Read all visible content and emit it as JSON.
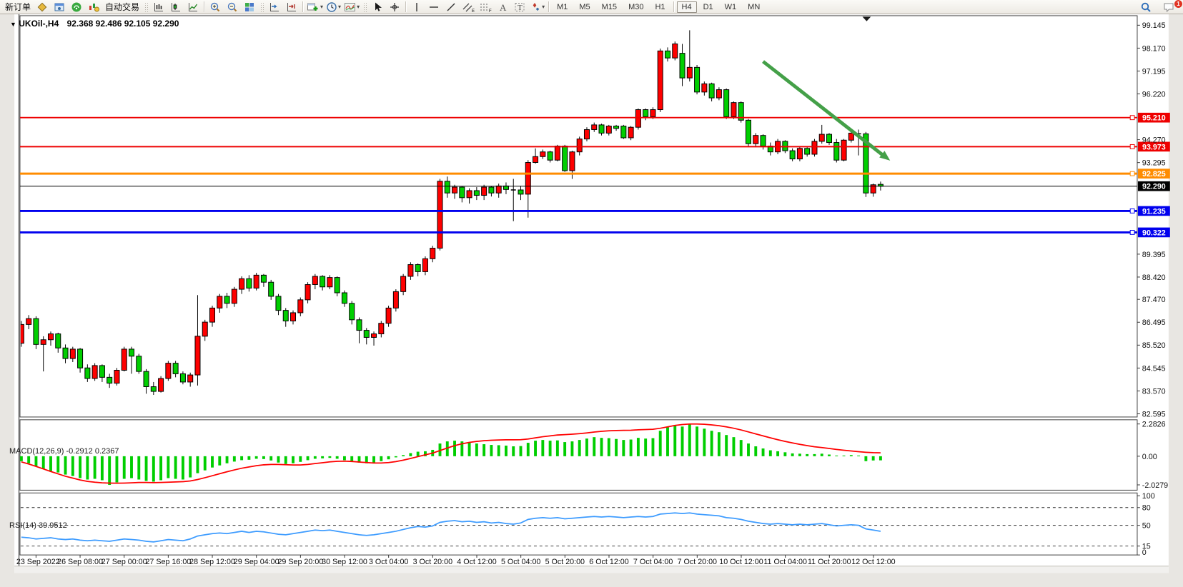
{
  "toolbar": {
    "new_order_label": "新订单",
    "autotrade_label": "自动交易",
    "timeframes": [
      "M1",
      "M5",
      "M15",
      "M30",
      "H1",
      "H4",
      "D1",
      "W1",
      "MN"
    ],
    "active_timeframe": "H4",
    "notification_badge": "1",
    "dropdown_caret": "▾"
  },
  "chart": {
    "caret": "▼",
    "title": "UKOil-,H4",
    "ohlc": "92.368 92.486 92.105 92.290"
  },
  "chart_data": [
    {
      "type": "candlestick",
      "symbol": "UKOil-",
      "timeframe": "H4",
      "title": "UKOil-,H4",
      "ohlc_display": {
        "open": "92.368",
        "high": "92.486",
        "low": "92.105",
        "close": "92.290"
      },
      "y_ticks": [
        "99.145",
        "98.170",
        "97.195",
        "96.220",
        "94.270",
        "93.295",
        "89.395",
        "88.420",
        "87.470",
        "86.495",
        "85.520",
        "84.545",
        "83.570",
        "82.595"
      ],
      "hlines": [
        {
          "price": 95.21,
          "label": "95.210",
          "color": "#EE0000",
          "width": 2
        },
        {
          "price": 93.973,
          "label": "93.973",
          "color": "#EE0000",
          "width": 2
        },
        {
          "price": 92.825,
          "label": "92.825",
          "color": "#FF8C00",
          "width": 3
        },
        {
          "price": 92.29,
          "label": "92.290",
          "color": "#000000",
          "width": 1
        },
        {
          "price": 91.235,
          "label": "91.235",
          "color": "#0000EE",
          "width": 3
        },
        {
          "price": 90.322,
          "label": "90.322",
          "color": "#0000EE",
          "width": 3
        }
      ],
      "x_labels": [
        "23 Sep 2022",
        "26 Sep 08:00",
        "27 Sep 00:00",
        "27 Sep 16:00",
        "28 Sep 12:00",
        "29 Sep 04:00",
        "29 Sep 20:00",
        "30 Sep 12:00",
        "3 Oct 04:00",
        "3 Oct 20:00",
        "4 Oct 12:00",
        "5 Oct 04:00",
        "5 Oct 20:00",
        "6 Oct 12:00",
        "7 Oct 04:00",
        "7 Oct 20:00",
        "10 Oct 12:00",
        "11 Oct 04:00",
        "11 Oct 20:00",
        "12 Oct 12:00"
      ],
      "candles": [
        [
          85.6,
          86.55,
          85.45,
          86.4
        ],
        [
          86.4,
          86.8,
          86.2,
          86.65
        ],
        [
          86.65,
          86.75,
          85.35,
          85.55
        ],
        [
          85.55,
          85.9,
          84.4,
          85.75
        ],
        [
          85.75,
          86.1,
          85.5,
          86.0
        ],
        [
          86.0,
          86.05,
          85.2,
          85.4
        ],
        [
          85.4,
          85.55,
          84.75,
          84.95
        ],
        [
          84.95,
          85.45,
          84.8,
          85.35
        ],
        [
          85.35,
          85.4,
          84.35,
          84.55
        ],
        [
          84.55,
          84.7,
          83.95,
          84.1
        ],
        [
          84.1,
          84.75,
          84.0,
          84.65
        ],
        [
          84.65,
          84.7,
          83.95,
          84.15
        ],
        [
          84.15,
          84.3,
          83.7,
          83.9
        ],
        [
          83.9,
          84.55,
          83.8,
          84.45
        ],
        [
          84.45,
          85.45,
          84.4,
          85.35
        ],
        [
          85.35,
          85.45,
          84.3,
          85.05
        ],
        [
          85.05,
          85.15,
          84.3,
          84.4
        ],
        [
          84.4,
          84.5,
          83.45,
          83.75
        ],
        [
          83.75,
          83.95,
          83.4,
          83.55
        ],
        [
          83.55,
          84.2,
          83.5,
          84.1
        ],
        [
          84.1,
          84.85,
          84.0,
          84.75
        ],
        [
          84.75,
          84.85,
          84.15,
          84.3
        ],
        [
          84.3,
          84.4,
          83.85,
          83.95
        ],
        [
          83.95,
          84.35,
          83.75,
          84.25
        ],
        [
          84.25,
          87.65,
          83.8,
          85.9
        ],
        [
          85.9,
          86.6,
          85.7,
          86.5
        ],
        [
          86.5,
          87.2,
          86.3,
          87.1
        ],
        [
          87.1,
          87.7,
          86.9,
          87.6
        ],
        [
          87.6,
          87.75,
          87.1,
          87.3
        ],
        [
          87.3,
          88.0,
          87.15,
          87.9
        ],
        [
          87.9,
          88.45,
          87.7,
          88.35
        ],
        [
          88.35,
          88.5,
          87.8,
          87.95
        ],
        [
          87.95,
          88.6,
          87.85,
          88.5
        ],
        [
          88.5,
          88.55,
          88.0,
          88.2
        ],
        [
          88.2,
          88.3,
          87.45,
          87.6
        ],
        [
          87.6,
          87.7,
          86.8,
          87.0
        ],
        [
          87.0,
          87.1,
          86.3,
          86.55
        ],
        [
          86.55,
          87.0,
          86.4,
          86.9
        ],
        [
          86.9,
          87.55,
          86.75,
          87.45
        ],
        [
          87.45,
          88.2,
          87.3,
          88.1
        ],
        [
          88.1,
          88.55,
          87.9,
          88.45
        ],
        [
          88.45,
          88.5,
          87.85,
          88.0
        ],
        [
          88.0,
          88.5,
          87.9,
          88.4
        ],
        [
          88.4,
          88.45,
          87.6,
          87.75
        ],
        [
          87.75,
          87.85,
          87.15,
          87.3
        ],
        [
          87.3,
          87.4,
          86.4,
          86.6
        ],
        [
          86.6,
          86.7,
          85.6,
          86.15
        ],
        [
          86.15,
          86.25,
          85.55,
          85.85
        ],
        [
          85.85,
          86.1,
          85.5,
          86.0
        ],
        [
          86.0,
          86.55,
          85.85,
          86.45
        ],
        [
          86.45,
          87.2,
          86.3,
          87.1
        ],
        [
          87.1,
          87.9,
          86.95,
          87.8
        ],
        [
          87.8,
          88.55,
          87.65,
          88.45
        ],
        [
          88.45,
          89.05,
          88.3,
          88.95
        ],
        [
          88.95,
          89.0,
          88.45,
          88.65
        ],
        [
          88.65,
          89.3,
          88.5,
          89.2
        ],
        [
          89.2,
          89.75,
          89.05,
          89.65
        ],
        [
          89.65,
          92.6,
          89.55,
          92.5
        ],
        [
          92.5,
          92.7,
          91.8,
          92.0
        ],
        [
          92.0,
          92.35,
          91.75,
          92.25
        ],
        [
          92.25,
          92.3,
          91.6,
          91.8
        ],
        [
          91.8,
          92.2,
          91.55,
          92.1
        ],
        [
          92.1,
          92.25,
          91.7,
          91.9
        ],
        [
          91.9,
          92.35,
          91.7,
          92.25
        ],
        [
          92.25,
          92.3,
          91.85,
          92.0
        ],
        [
          92.0,
          92.4,
          91.8,
          92.3
        ],
        [
          92.3,
          92.45,
          91.95,
          92.15
        ],
        [
          92.15,
          92.6,
          90.8,
          92.13
        ],
        [
          92.13,
          92.3,
          91.7,
          91.95
        ],
        [
          91.95,
          93.4,
          90.95,
          93.3
        ],
        [
          93.3,
          93.9,
          93.25,
          93.55
        ],
        [
          93.55,
          93.85,
          93.45,
          93.75
        ],
        [
          93.75,
          93.8,
          93.3,
          93.4
        ],
        [
          93.4,
          94.05,
          93.35,
          94.0
        ],
        [
          94.0,
          94.05,
          92.9,
          92.95
        ],
        [
          92.95,
          93.8,
          92.6,
          93.75
        ],
        [
          93.75,
          94.4,
          93.6,
          94.3
        ],
        [
          94.3,
          94.8,
          94.2,
          94.7
        ],
        [
          94.7,
          95.0,
          94.6,
          94.9
        ],
        [
          94.9,
          94.95,
          94.45,
          94.55
        ],
        [
          94.55,
          94.9,
          94.45,
          94.85
        ],
        [
          94.85,
          94.9,
          94.65,
          94.75
        ],
        [
          94.85,
          94.9,
          94.3,
          94.35
        ],
        [
          94.35,
          94.85,
          94.25,
          94.8
        ],
        [
          94.8,
          95.6,
          94.7,
          95.55
        ],
        [
          95.55,
          95.6,
          95.1,
          95.25
        ],
        [
          95.25,
          95.65,
          95.15,
          95.55
        ],
        [
          95.55,
          98.15,
          95.45,
          98.05
        ],
        [
          98.05,
          98.2,
          97.6,
          97.75
        ],
        [
          97.75,
          98.45,
          97.65,
          98.35
        ],
        [
          97.95,
          98.35,
          96.55,
          96.9
        ],
        [
          96.9,
          98.93,
          96.75,
          97.35
        ],
        [
          97.35,
          97.45,
          96.2,
          96.3
        ],
        [
          96.3,
          96.75,
          96.15,
          96.65
        ],
        [
          96.65,
          96.7,
          95.9,
          96.05
        ],
        [
          96.05,
          96.5,
          95.95,
          96.4
        ],
        [
          96.4,
          96.45,
          95.15,
          95.25
        ],
        [
          95.25,
          95.9,
          95.15,
          95.85
        ],
        [
          95.85,
          95.9,
          95.0,
          95.1
        ],
        [
          95.1,
          95.15,
          94.0,
          94.1
        ],
        [
          94.1,
          94.55,
          93.95,
          94.45
        ],
        [
          94.45,
          94.5,
          93.85,
          94.0
        ],
        [
          94.0,
          94.15,
          93.6,
          93.75
        ],
        [
          93.75,
          94.3,
          93.65,
          94.2
        ],
        [
          94.2,
          94.25,
          93.7,
          93.8
        ],
        [
          93.8,
          93.9,
          93.35,
          93.45
        ],
        [
          93.45,
          94.0,
          93.35,
          93.9
        ],
        [
          93.9,
          93.95,
          93.55,
          93.65
        ],
        [
          93.65,
          94.3,
          93.55,
          94.2
        ],
        [
          94.2,
          94.9,
          94.1,
          94.5
        ],
        [
          94.5,
          94.55,
          94.05,
          94.15
        ],
        [
          94.15,
          94.3,
          93.3,
          93.4
        ],
        [
          93.4,
          94.3,
          93.35,
          94.25
        ],
        [
          94.25,
          94.65,
          94.15,
          94.55
        ],
        [
          94.55,
          94.7,
          93.6,
          94.52
        ],
        [
          94.52,
          94.6,
          91.83,
          92.0
        ],
        [
          92.0,
          92.4,
          91.84,
          92.35
        ],
        [
          92.368,
          92.486,
          92.105,
          92.29
        ]
      ],
      "trend_arrow": {
        "from_index": 101,
        "from_price": 97.6,
        "to_index": 118.3,
        "to_price": 93.38,
        "color": "#44A048"
      }
    },
    {
      "type": "macd-histogram",
      "label": "MACD(12,26,9)",
      "values_display": "-0.2912 0.2367",
      "main_value": -0.2912,
      "signal_value": 0.2367,
      "y_ticks": [
        "2.2826",
        "0.00",
        "-2.0279"
      ],
      "ylim": [
        -2.0279,
        2.2826
      ],
      "histogram": [
        -0.35,
        -0.5,
        -0.7,
        -0.9,
        -1.05,
        -1.15,
        -1.3,
        -1.4,
        -1.55,
        -1.65,
        -1.6,
        -1.7,
        -2.03,
        -1.85,
        -1.6,
        -1.55,
        -1.65,
        -1.75,
        -1.8,
        -1.7,
        -1.55,
        -1.6,
        -1.65,
        -1.5,
        -1.2,
        -1.0,
        -0.8,
        -0.65,
        -0.5,
        -0.38,
        -0.28,
        -0.25,
        -0.18,
        -0.2,
        -0.3,
        -0.45,
        -0.55,
        -0.5,
        -0.4,
        -0.28,
        -0.18,
        -0.15,
        -0.12,
        -0.18,
        -0.28,
        -0.38,
        -0.45,
        -0.5,
        -0.45,
        -0.35,
        -0.22,
        -0.08,
        0.08,
        0.22,
        0.32,
        0.35,
        0.45,
        0.9,
        1.05,
        1.1,
        1.05,
        1.0,
        0.9,
        0.85,
        0.8,
        0.78,
        0.75,
        0.7,
        0.72,
        0.95,
        1.1,
        1.15,
        1.1,
        1.12,
        1.0,
        1.05,
        1.15,
        1.25,
        1.35,
        1.3,
        1.28,
        1.22,
        1.15,
        1.18,
        1.3,
        1.25,
        1.28,
        1.8,
        2.05,
        2.2,
        2.1,
        2.28,
        2.1,
        1.95,
        1.8,
        1.7,
        1.5,
        1.35,
        1.15,
        0.9,
        0.7,
        0.55,
        0.42,
        0.35,
        0.28,
        0.2,
        0.18,
        0.15,
        0.15,
        0.18,
        0.12,
        0.02,
        0.05,
        0.08,
        0.02,
        -0.35,
        -0.3,
        -0.29
      ],
      "signal": [
        -0.4,
        -0.55,
        -0.72,
        -0.9,
        -1.08,
        -1.25,
        -1.42,
        -1.55,
        -1.68,
        -1.78,
        -1.84,
        -1.88,
        -1.9,
        -1.91,
        -1.9,
        -1.88,
        -1.86,
        -1.86,
        -1.87,
        -1.86,
        -1.84,
        -1.82,
        -1.8,
        -1.75,
        -1.65,
        -1.52,
        -1.38,
        -1.24,
        -1.1,
        -0.97,
        -0.85,
        -0.76,
        -0.67,
        -0.61,
        -0.58,
        -0.58,
        -0.6,
        -0.62,
        -0.62,
        -0.58,
        -0.52,
        -0.46,
        -0.4,
        -0.36,
        -0.35,
        -0.37,
        -0.41,
        -0.45,
        -0.48,
        -0.48,
        -0.45,
        -0.38,
        -0.28,
        -0.16,
        -0.03,
        0.1,
        0.22,
        0.4,
        0.58,
        0.75,
        0.88,
        0.98,
        1.05,
        1.1,
        1.13,
        1.15,
        1.16,
        1.16,
        1.17,
        1.22,
        1.3,
        1.38,
        1.44,
        1.5,
        1.53,
        1.56,
        1.6,
        1.65,
        1.71,
        1.76,
        1.8,
        1.82,
        1.83,
        1.84,
        1.87,
        1.89,
        1.91,
        1.98,
        2.08,
        2.18,
        2.24,
        2.28,
        2.28,
        2.26,
        2.22,
        2.16,
        2.08,
        1.98,
        1.86,
        1.72,
        1.58,
        1.44,
        1.3,
        1.17,
        1.05,
        0.94,
        0.84,
        0.75,
        0.67,
        0.61,
        0.55,
        0.48,
        0.42,
        0.37,
        0.32,
        0.28,
        0.25,
        0.24
      ]
    },
    {
      "type": "rsi-line",
      "label": "RSI(14)",
      "value_display": "39.9512",
      "y_ticks": [
        "100",
        "80",
        "50",
        "15",
        "0"
      ],
      "dashed_levels": [
        80,
        50,
        15
      ],
      "ylim": [
        0,
        100
      ],
      "values": [
        30,
        29,
        27,
        28,
        29,
        27,
        26,
        27,
        25,
        24,
        25,
        24,
        23,
        25,
        27,
        26,
        25,
        23,
        22,
        24,
        26,
        25,
        24,
        27,
        32,
        34,
        36,
        37,
        36,
        38,
        40,
        38,
        40,
        39,
        37,
        35,
        34,
        36,
        38,
        40,
        42,
        41,
        42,
        40,
        38,
        36,
        34,
        33,
        34,
        36,
        38,
        40,
        43,
        46,
        48,
        47,
        49,
        55,
        57,
        58,
        56,
        57,
        55,
        56,
        54,
        55,
        53,
        52,
        54,
        60,
        62,
        63,
        62,
        63,
        61,
        62,
        63,
        64,
        65,
        64,
        65,
        64,
        63,
        64,
        65,
        64,
        65,
        69,
        70,
        71,
        70,
        71,
        69,
        68,
        67,
        66,
        63,
        62,
        60,
        57,
        55,
        53,
        52,
        53,
        52,
        51,
        52,
        51,
        52,
        53,
        51,
        49,
        50,
        51,
        50,
        44,
        42,
        40
      ]
    }
  ],
  "colors": {
    "bull_candle": "#FE0000",
    "bear_candle": "#00CE00",
    "doji_candle": "#000000",
    "macd_hist": "#00CE00",
    "macd_signal": "#FF0000",
    "rsi_line": "#3E9CFF",
    "trend_arrow": "#44A048"
  }
}
